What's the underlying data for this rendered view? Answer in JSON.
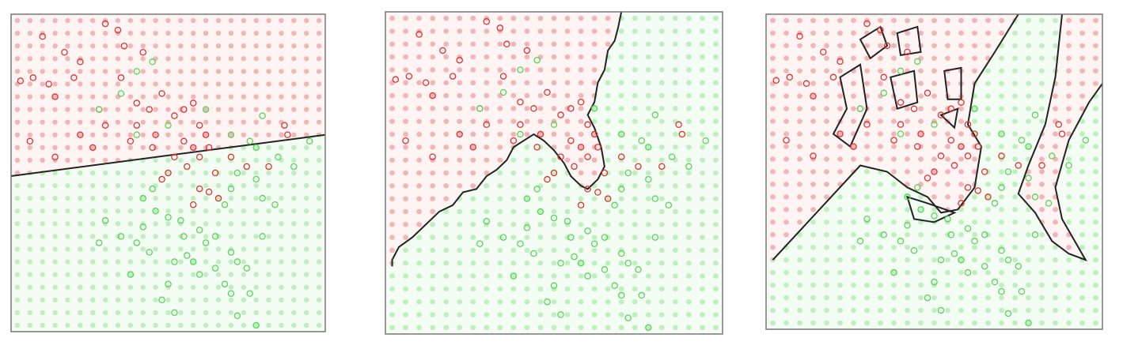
{
  "chart_data": [
    {
      "type": "scatter",
      "xlim": [
        0,
        100
      ],
      "ylim": [
        0,
        100
      ],
      "series": [
        {
          "color": "#e53030",
          "x": [
            10,
            17,
            7,
            12,
            14,
            3,
            20,
            6,
            14,
            22,
            30,
            34,
            36,
            42,
            35,
            40,
            44,
            48,
            52,
            55,
            58,
            60,
            62,
            55,
            58,
            63,
            56,
            60,
            65,
            60,
            63,
            58,
            52,
            50,
            46,
            40,
            38,
            30,
            28,
            22,
            26,
            45,
            70,
            75,
            87,
            88,
            82,
            66,
            48
          ],
          "values": [
            93,
            88,
            80,
            78,
            74,
            79,
            80,
            60,
            55,
            85,
            97,
            95,
            90,
            88,
            80,
            72,
            70,
            75,
            68,
            70,
            72,
            65,
            62,
            60,
            58,
            58,
            52,
            55,
            50,
            45,
            44,
            40,
            55,
            50,
            62,
            65,
            60,
            65,
            70,
            62,
            58,
            58,
            55,
            52,
            65,
            62,
            52,
            42,
            48
          ]
        },
        {
          "color": "#55d655",
          "x": [
            28,
            35,
            40,
            45,
            40,
            50,
            62,
            70,
            76,
            80,
            78,
            85,
            95,
            90,
            72,
            70,
            68,
            78,
            80,
            84,
            45,
            42,
            46,
            50,
            54,
            55,
            60,
            62,
            65,
            58,
            52,
            56,
            60,
            65,
            70,
            72,
            75,
            68,
            70,
            76,
            80,
            30,
            28,
            35,
            40,
            44,
            50,
            48,
            52,
            72,
            78,
            38,
            42
          ],
          "values": [
            70,
            75,
            82,
            85,
            62,
            65,
            70,
            62,
            60,
            68,
            58,
            55,
            60,
            52,
            50,
            45,
            40,
            48,
            42,
            40,
            45,
            42,
            38,
            36,
            35,
            30,
            32,
            28,
            30,
            22,
            22,
            24,
            18,
            20,
            25,
            22,
            20,
            15,
            12,
            12,
            30,
            35,
            28,
            30,
            28,
            25,
            15,
            10,
            6,
            5,
            2,
            18,
            33
          ]
        }
      ]
    },
    {
      "type": "scatter",
      "xlim": [
        0,
        100
      ],
      "ylim": [
        0,
        100
      ],
      "series": [
        {
          "color": "#e53030",
          "x": [
            10,
            17,
            7,
            12,
            14,
            3,
            20,
            6,
            14,
            22,
            30,
            34,
            36,
            42,
            35,
            40,
            44,
            48,
            52,
            55,
            58,
            60,
            62,
            55,
            58,
            63,
            56,
            60,
            65,
            60,
            63,
            58,
            52,
            50,
            46,
            40,
            38,
            30,
            28,
            22,
            26,
            45,
            70,
            75,
            87,
            88,
            82,
            66,
            48
          ],
          "values": [
            93,
            88,
            80,
            78,
            74,
            79,
            80,
            60,
            55,
            85,
            97,
            95,
            90,
            88,
            80,
            72,
            70,
            75,
            68,
            70,
            72,
            65,
            62,
            60,
            58,
            58,
            52,
            55,
            50,
            45,
            44,
            40,
            55,
            50,
            62,
            65,
            60,
            65,
            70,
            62,
            58,
            58,
            55,
            52,
            65,
            62,
            52,
            42,
            48
          ]
        },
        {
          "color": "#55d655",
          "x": [
            28,
            35,
            40,
            45,
            40,
            50,
            62,
            70,
            76,
            80,
            78,
            85,
            95,
            90,
            72,
            70,
            68,
            78,
            80,
            84,
            45,
            42,
            46,
            50,
            54,
            55,
            60,
            62,
            65,
            58,
            52,
            56,
            60,
            65,
            70,
            72,
            75,
            68,
            70,
            76,
            80,
            30,
            28,
            35,
            40,
            44,
            50,
            48,
            52,
            72,
            78,
            38,
            42
          ],
          "values": [
            70,
            75,
            82,
            85,
            62,
            65,
            70,
            62,
            60,
            68,
            58,
            55,
            60,
            52,
            50,
            45,
            40,
            48,
            42,
            40,
            45,
            42,
            38,
            36,
            35,
            30,
            32,
            28,
            30,
            22,
            22,
            24,
            18,
            20,
            25,
            22,
            20,
            15,
            12,
            12,
            30,
            35,
            28,
            30,
            28,
            25,
            15,
            10,
            6,
            5,
            2,
            18,
            33
          ]
        }
      ]
    },
    {
      "type": "scatter",
      "xlim": [
        0,
        100
      ],
      "ylim": [
        0,
        100
      ],
      "series": [
        {
          "color": "#e53030",
          "x": [
            10,
            17,
            7,
            12,
            14,
            3,
            20,
            6,
            14,
            22,
            30,
            34,
            36,
            42,
            35,
            40,
            44,
            48,
            52,
            55,
            58,
            60,
            62,
            55,
            58,
            63,
            56,
            60,
            65,
            60,
            63,
            58,
            52,
            50,
            46,
            40,
            38,
            30,
            28,
            22,
            26,
            45,
            70,
            75,
            87,
            88,
            82,
            66,
            48
          ],
          "values": [
            93,
            88,
            80,
            78,
            74,
            79,
            80,
            60,
            55,
            85,
            97,
            95,
            90,
            88,
            80,
            72,
            70,
            75,
            68,
            70,
            72,
            65,
            62,
            60,
            58,
            58,
            52,
            55,
            50,
            45,
            44,
            40,
            55,
            50,
            62,
            65,
            60,
            65,
            70,
            62,
            58,
            58,
            55,
            52,
            65,
            62,
            52,
            42,
            48
          ]
        },
        {
          "color": "#55d655",
          "x": [
            28,
            35,
            40,
            45,
            40,
            50,
            62,
            70,
            76,
            80,
            78,
            85,
            95,
            90,
            72,
            70,
            68,
            78,
            80,
            84,
            45,
            42,
            46,
            50,
            54,
            55,
            60,
            62,
            65,
            58,
            52,
            56,
            60,
            65,
            70,
            72,
            75,
            68,
            70,
            76,
            80,
            30,
            28,
            35,
            40,
            44,
            50,
            48,
            52,
            72,
            78,
            38,
            42
          ],
          "values": [
            70,
            75,
            82,
            85,
            62,
            65,
            70,
            62,
            60,
            68,
            58,
            55,
            60,
            52,
            50,
            45,
            40,
            48,
            42,
            40,
            45,
            42,
            38,
            36,
            35,
            30,
            32,
            28,
            30,
            22,
            22,
            24,
            18,
            20,
            25,
            22,
            20,
            15,
            12,
            12,
            30,
            35,
            28,
            30,
            28,
            25,
            15,
            10,
            6,
            5,
            2,
            18,
            33
          ]
        }
      ]
    }
  ]
}
